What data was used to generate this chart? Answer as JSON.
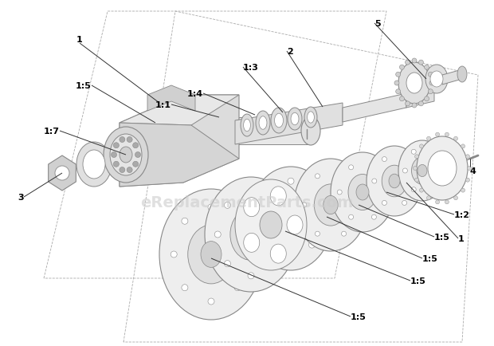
{
  "bg_color": "#ffffff",
  "line_color": "#888888",
  "line_color_dark": "#555555",
  "fill_light": "#f0f0f0",
  "fill_mid": "#e0e0e0",
  "fill_dark": "#cccccc",
  "label_color": "#000000",
  "watermark_text": "eReplacementParts.com",
  "watermark_color": "#cccccc",
  "watermark_fontsize": 14,
  "fig_width": 6.2,
  "fig_height": 4.35,
  "dpi": 100
}
